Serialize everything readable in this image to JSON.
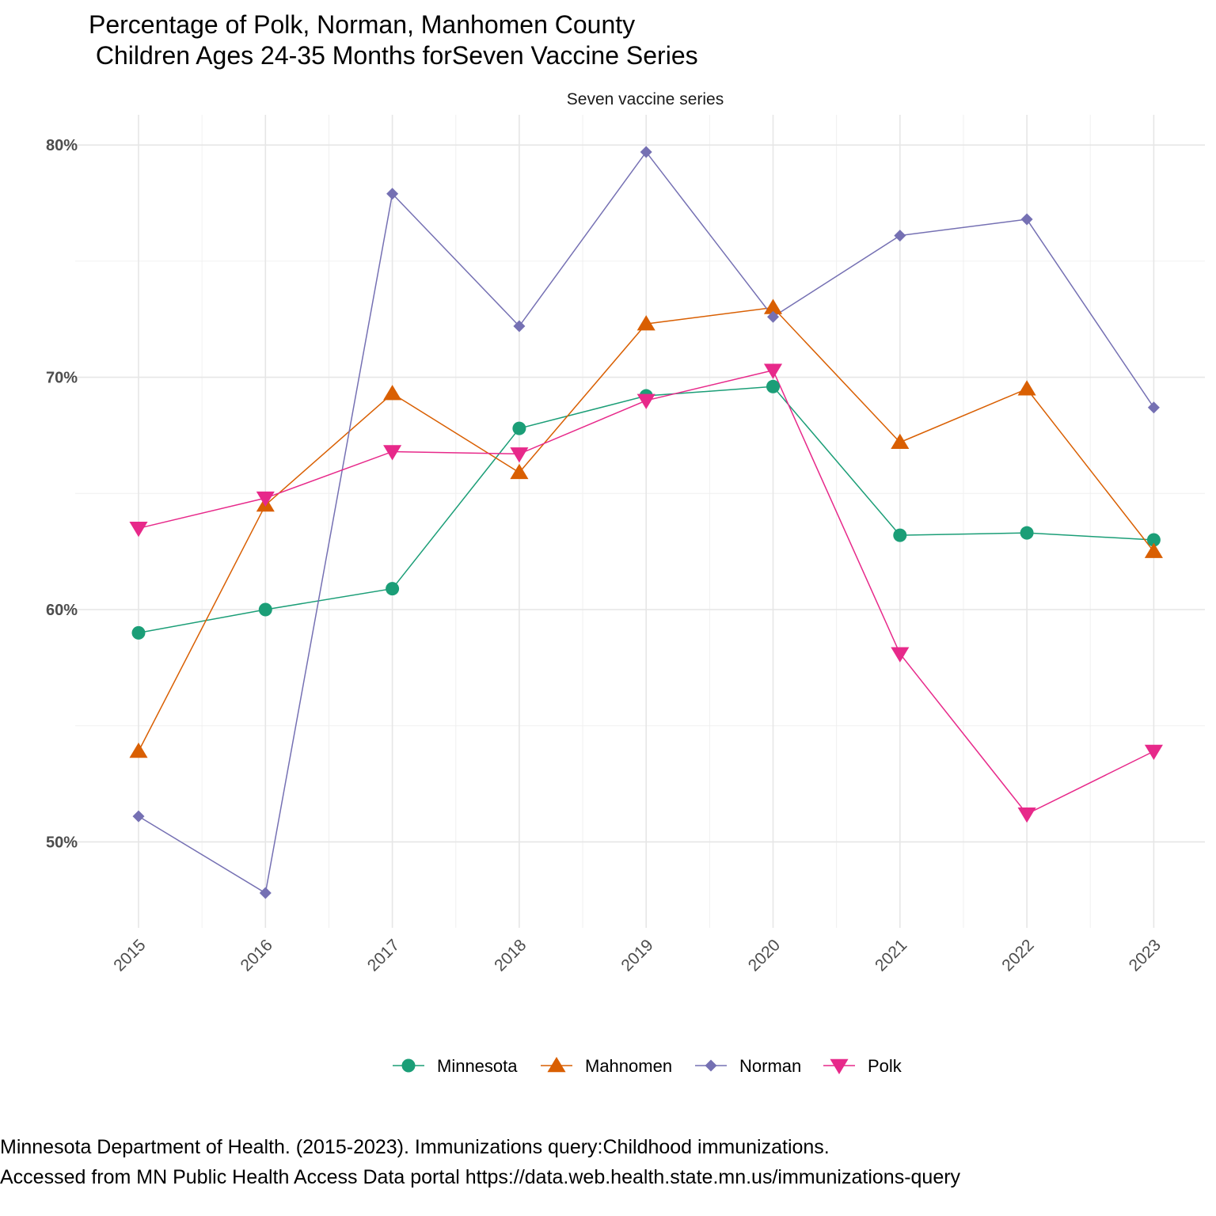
{
  "chart_data": {
    "type": "line",
    "title_line1": "Percentage of Polk, Norman, Manhomen County",
    "title_line2": " Children Ages 24-35 Months forSeven Vaccine Series",
    "facet_label": "Seven vaccine series",
    "xlabel": "",
    "ylabel": "",
    "x": [
      "2015",
      "2016",
      "2017",
      "2018",
      "2019",
      "2020",
      "2021",
      "2022",
      "2023"
    ],
    "yticks": [
      50,
      60,
      70,
      80
    ],
    "ytick_labels": [
      "50%",
      "60%",
      "70%",
      "80%"
    ],
    "ylim": [
      46.3,
      81.3
    ],
    "grid": true,
    "legend_position": "bottom",
    "series": [
      {
        "name": "Minnesota",
        "color": "#1B9E77",
        "marker": "circle",
        "values": [
          59.0,
          60.0,
          60.9,
          67.8,
          69.2,
          69.6,
          63.2,
          63.3,
          63.0
        ]
      },
      {
        "name": "Mahnomen",
        "color": "#D95F02",
        "marker": "triangle-up",
        "values": [
          53.9,
          64.5,
          69.3,
          65.9,
          72.3,
          73.0,
          67.2,
          69.5,
          62.5
        ]
      },
      {
        "name": "Norman",
        "color": "#7570B3",
        "marker": "diamond",
        "values": [
          51.1,
          47.8,
          77.9,
          72.2,
          79.7,
          72.6,
          76.1,
          76.8,
          68.7
        ]
      },
      {
        "name": "Polk",
        "color": "#E7298A",
        "marker": "triangle-down",
        "values": [
          63.5,
          64.8,
          66.8,
          66.7,
          69.0,
          70.3,
          58.1,
          51.2,
          53.9
        ]
      }
    ]
  },
  "source": {
    "line1": "Minnesota Department of Health. (2015-2023). Immunizations query:Childhood immunizations.",
    "line2": "Accessed from MN Public Health Access Data portal https://data.web.health.state.mn.us/immunizations-query"
  }
}
